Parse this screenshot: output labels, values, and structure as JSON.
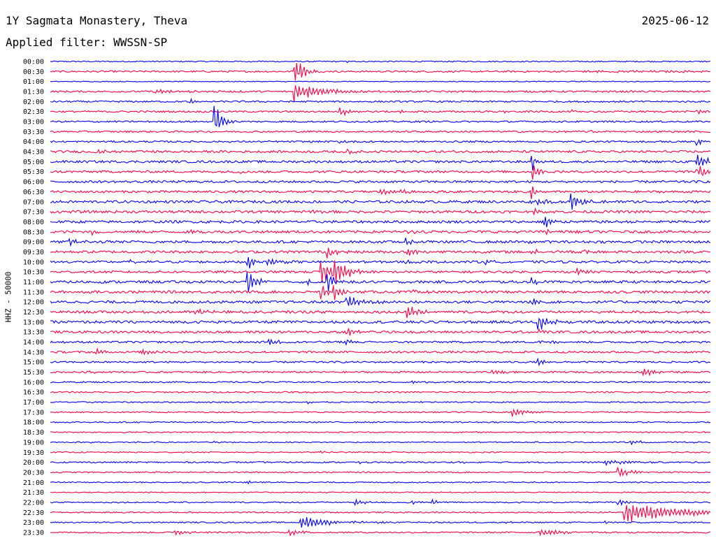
{
  "header": {
    "station": "1Y Sagmata Monastery, Theva",
    "date": "2025-06-12",
    "filter": "Applied filter: WWSSN-SP"
  },
  "chart_data": {
    "type": "line",
    "title": "1Y Sagmata Monastery, Theva",
    "ylabel": "HHZ - 50000",
    "colors": {
      "even": "#0000ff",
      "odd": "#ff0044"
    },
    "rows": [
      {
        "label": "00:00",
        "noise": 0.8,
        "events": [
          {
            "t": 0.3,
            "amp": 2,
            "dur": 0.005
          },
          {
            "t": 0.45,
            "amp": 1.5,
            "dur": 0.004
          }
        ]
      },
      {
        "label": "00:30",
        "noise": 1.2,
        "events": [
          {
            "t": 0.37,
            "amp": 30,
            "dur": 0.012
          },
          {
            "t": 0.8,
            "amp": 1.5,
            "dur": 0.15
          }
        ]
      },
      {
        "label": "01:00",
        "noise": 0.6,
        "events": []
      },
      {
        "label": "01:30",
        "noise": 1.2,
        "events": [
          {
            "t": 0.16,
            "amp": 3,
            "dur": 0.03
          },
          {
            "t": 0.37,
            "amp": 18,
            "dur": 0.035
          }
        ]
      },
      {
        "label": "02:00",
        "noise": 1.2,
        "events": [
          {
            "t": 0.21,
            "amp": 7,
            "dur": 0.01
          }
        ]
      },
      {
        "label": "02:30",
        "noise": 1.2,
        "events": [
          {
            "t": 0.44,
            "amp": 6,
            "dur": 0.015
          },
          {
            "t": 0.53,
            "amp": 4,
            "dur": 0.012
          },
          {
            "t": 0.69,
            "amp": 2,
            "dur": 0.01
          },
          {
            "t": 0.79,
            "amp": 2,
            "dur": 0.01
          },
          {
            "t": 0.98,
            "amp": 5,
            "dur": 0.006
          }
        ]
      },
      {
        "label": "03:00",
        "noise": 1.2,
        "events": [
          {
            "t": 0.25,
            "amp": 25,
            "dur": 0.012
          }
        ]
      },
      {
        "label": "03:30",
        "noise": 1.2,
        "events": [
          {
            "t": 0.82,
            "amp": 3,
            "dur": 0.005
          }
        ]
      },
      {
        "label": "04:00",
        "noise": 1.2,
        "events": [
          {
            "t": 0.44,
            "amp": 3,
            "dur": 0.01
          },
          {
            "t": 0.91,
            "amp": 2,
            "dur": 0.01
          },
          {
            "t": 0.98,
            "amp": 10,
            "dur": 0.005
          }
        ]
      },
      {
        "label": "04:30",
        "noise": 1.6,
        "events": [
          {
            "t": 0.07,
            "amp": 3,
            "dur": 0.02
          },
          {
            "t": 0.45,
            "amp": 4,
            "dur": 0.01
          }
        ]
      },
      {
        "label": "05:00",
        "noise": 1.6,
        "events": [
          {
            "t": 0.73,
            "amp": 14,
            "dur": 0.006
          },
          {
            "t": 0.98,
            "amp": 12,
            "dur": 0.02
          }
        ]
      },
      {
        "label": "05:30",
        "noise": 1.6,
        "events": [
          {
            "t": 0.29,
            "amp": 3,
            "dur": 0.005
          },
          {
            "t": 0.73,
            "amp": 20,
            "dur": 0.008
          },
          {
            "t": 0.98,
            "amp": 10,
            "dur": 0.02
          }
        ]
      },
      {
        "label": "06:00",
        "noise": 1.6,
        "events": []
      },
      {
        "label": "06:30",
        "noise": 1.6,
        "events": [
          {
            "t": 0.5,
            "amp": 6,
            "dur": 0.035
          },
          {
            "t": 0.73,
            "amp": 12,
            "dur": 0.006
          }
        ]
      },
      {
        "label": "07:00",
        "noise": 1.8,
        "events": [
          {
            "t": 0.73,
            "amp": 4,
            "dur": 0.03
          },
          {
            "t": 0.79,
            "amp": 14,
            "dur": 0.012
          }
        ]
      },
      {
        "label": "07:30",
        "noise": 1.8,
        "events": [
          {
            "t": 0.4,
            "amp": 2,
            "dur": 0.01
          },
          {
            "t": 0.73,
            "amp": 6,
            "dur": 0.008
          }
        ]
      },
      {
        "label": "08:00",
        "noise": 1.8,
        "events": [
          {
            "t": 0.75,
            "amp": 12,
            "dur": 0.008
          }
        ]
      },
      {
        "label": "08:30",
        "noise": 1.8,
        "events": [
          {
            "t": 0.06,
            "amp": 6,
            "dur": 0.005
          },
          {
            "t": 0.21,
            "amp": 2,
            "dur": 0.01
          },
          {
            "t": 0.54,
            "amp": 3,
            "dur": 0.01
          },
          {
            "t": 0.75,
            "amp": 4,
            "dur": 0.01
          }
        ]
      },
      {
        "label": "09:00",
        "noise": 1.8,
        "events": [
          {
            "t": 0.03,
            "amp": 5,
            "dur": 0.015
          },
          {
            "t": 0.54,
            "amp": 6,
            "dur": 0.008
          },
          {
            "t": 0.72,
            "amp": 3,
            "dur": 0.008
          }
        ]
      },
      {
        "label": "09:30",
        "noise": 1.8,
        "events": [
          {
            "t": 0.42,
            "amp": 12,
            "dur": 0.01
          },
          {
            "t": 0.54,
            "amp": 7,
            "dur": 0.015
          },
          {
            "t": 0.73,
            "amp": 4,
            "dur": 0.02
          },
          {
            "t": 0.81,
            "amp": 3,
            "dur": 0.01
          }
        ]
      },
      {
        "label": "10:00",
        "noise": 1.6,
        "events": [
          {
            "t": 0.12,
            "amp": 3,
            "dur": 0.008
          },
          {
            "t": 0.3,
            "amp": 14,
            "dur": 0.006
          },
          {
            "t": 0.33,
            "amp": 5,
            "dur": 0.02
          },
          {
            "t": 0.54,
            "amp": 5,
            "dur": 0.01
          },
          {
            "t": 0.66,
            "amp": 3,
            "dur": 0.01
          }
        ]
      },
      {
        "label": "10:30",
        "noise": 1.6,
        "events": [
          {
            "t": 0.41,
            "amp": 20,
            "dur": 0.02
          },
          {
            "t": 0.43,
            "amp": 24,
            "dur": 0.015
          },
          {
            "t": 0.8,
            "amp": 6,
            "dur": 0.01
          }
        ]
      },
      {
        "label": "11:00",
        "noise": 1.8,
        "events": [
          {
            "t": 0.3,
            "amp": 22,
            "dur": 0.012
          },
          {
            "t": 0.39,
            "amp": 4,
            "dur": 0.008
          },
          {
            "t": 0.42,
            "amp": 20,
            "dur": 0.01
          },
          {
            "t": 0.73,
            "amp": 8,
            "dur": 0.008
          }
        ]
      },
      {
        "label": "11:30",
        "noise": 1.8,
        "events": [
          {
            "t": 0.41,
            "amp": 16,
            "dur": 0.008
          },
          {
            "t": 0.43,
            "amp": 16,
            "dur": 0.008
          },
          {
            "t": 0.55,
            "amp": 3,
            "dur": 0.01
          }
        ]
      },
      {
        "label": "12:00",
        "noise": 1.8,
        "events": [
          {
            "t": 0.45,
            "amp": 12,
            "dur": 0.02
          },
          {
            "t": 0.73,
            "amp": 10,
            "dur": 0.008
          }
        ]
      },
      {
        "label": "12:30",
        "noise": 1.8,
        "events": [
          {
            "t": 0.22,
            "amp": 4,
            "dur": 0.03
          },
          {
            "t": 0.54,
            "amp": 12,
            "dur": 0.012
          }
        ]
      },
      {
        "label": "13:00",
        "noise": 1.8,
        "events": [
          {
            "t": 0.74,
            "amp": 14,
            "dur": 0.015
          }
        ]
      },
      {
        "label": "13:30",
        "noise": 1.6,
        "events": [
          {
            "t": 0.45,
            "amp": 8,
            "dur": 0.012
          },
          {
            "t": 0.74,
            "amp": 4,
            "dur": 0.008
          }
        ]
      },
      {
        "label": "14:00",
        "noise": 1.4,
        "events": [
          {
            "t": 0.33,
            "amp": 6,
            "dur": 0.015
          },
          {
            "t": 0.45,
            "amp": 6,
            "dur": 0.006
          },
          {
            "t": 0.74,
            "amp": 4,
            "dur": 0.008
          },
          {
            "t": 0.76,
            "amp": 6,
            "dur": 0.006
          }
        ]
      },
      {
        "label": "14:30",
        "noise": 1.4,
        "events": [
          {
            "t": 0.07,
            "amp": 5,
            "dur": 0.008
          },
          {
            "t": 0.14,
            "amp": 6,
            "dur": 0.012
          }
        ]
      },
      {
        "label": "15:00",
        "noise": 1.2,
        "events": [
          {
            "t": 0.74,
            "amp": 5,
            "dur": 0.008
          }
        ]
      },
      {
        "label": "15:30",
        "noise": 1.2,
        "events": [
          {
            "t": 0.06,
            "amp": 2,
            "dur": 0.01
          },
          {
            "t": 0.67,
            "amp": 5,
            "dur": 0.015
          },
          {
            "t": 0.9,
            "amp": 7,
            "dur": 0.015
          }
        ]
      },
      {
        "label": "16:00",
        "noise": 1.0,
        "events": [
          {
            "t": 0.55,
            "amp": 2,
            "dur": 0.01
          }
        ]
      },
      {
        "label": "16:30",
        "noise": 1.0,
        "events": []
      },
      {
        "label": "17:00",
        "noise": 0.9,
        "events": [
          {
            "t": 0.39,
            "amp": 2,
            "dur": 0.008
          },
          {
            "t": 0.56,
            "amp": 2,
            "dur": 0.008
          }
        ]
      },
      {
        "label": "17:30",
        "noise": 0.9,
        "events": [
          {
            "t": 0.7,
            "amp": 9,
            "dur": 0.02
          }
        ]
      },
      {
        "label": "18:00",
        "noise": 0.9,
        "events": []
      },
      {
        "label": "18:30",
        "noise": 0.8,
        "events": [
          {
            "t": 0.99,
            "amp": 2,
            "dur": 0.005
          }
        ]
      },
      {
        "label": "19:00",
        "noise": 0.8,
        "events": [
          {
            "t": 0.06,
            "amp": 2,
            "dur": 0.005
          },
          {
            "t": 0.13,
            "amp": 2,
            "dur": 0.005
          },
          {
            "t": 0.25,
            "amp": 2,
            "dur": 0.005
          },
          {
            "t": 0.88,
            "amp": 3,
            "dur": 0.02
          },
          {
            "t": 0.97,
            "amp": 2,
            "dur": 0.006
          }
        ]
      },
      {
        "label": "19:30",
        "noise": 0.8,
        "events": [
          {
            "t": 0.41,
            "amp": 2,
            "dur": 0.006
          }
        ]
      },
      {
        "label": "20:00",
        "noise": 1.0,
        "events": [
          {
            "t": 0.47,
            "amp": 2,
            "dur": 0.006
          },
          {
            "t": 0.62,
            "amp": 2,
            "dur": 0.006
          },
          {
            "t": 0.84,
            "amp": 4,
            "dur": 0.04
          }
        ]
      },
      {
        "label": "20:30",
        "noise": 0.9,
        "events": [
          {
            "t": 0.86,
            "amp": 14,
            "dur": 0.012
          }
        ]
      },
      {
        "label": "21:00",
        "noise": 0.8,
        "events": [
          {
            "t": 0.3,
            "amp": 3,
            "dur": 0.006
          }
        ]
      },
      {
        "label": "21:30",
        "noise": 0.7,
        "events": []
      },
      {
        "label": "22:00",
        "noise": 0.9,
        "events": [
          {
            "t": 0.46,
            "amp": 5,
            "dur": 0.015
          },
          {
            "t": 0.55,
            "amp": 3,
            "dur": 0.01
          },
          {
            "t": 0.58,
            "amp": 4,
            "dur": 0.012
          },
          {
            "t": 0.86,
            "amp": 6,
            "dur": 0.015
          }
        ]
      },
      {
        "label": "22:30",
        "noise": 0.9,
        "events": [
          {
            "t": 0.87,
            "amp": 18,
            "dur": 0.08
          }
        ]
      },
      {
        "label": "23:00",
        "noise": 0.9,
        "events": [
          {
            "t": 0.38,
            "amp": 12,
            "dur": 0.04
          },
          {
            "t": 0.69,
            "amp": 2,
            "dur": 0.01
          },
          {
            "t": 0.84,
            "amp": 2,
            "dur": 0.01
          }
        ]
      },
      {
        "label": "23:30",
        "noise": 1.0,
        "events": [
          {
            "t": 0.19,
            "amp": 5,
            "dur": 0.02
          },
          {
            "t": 0.36,
            "amp": 6,
            "dur": 0.02
          },
          {
            "t": 0.74,
            "amp": 7,
            "dur": 0.03
          }
        ]
      }
    ]
  }
}
